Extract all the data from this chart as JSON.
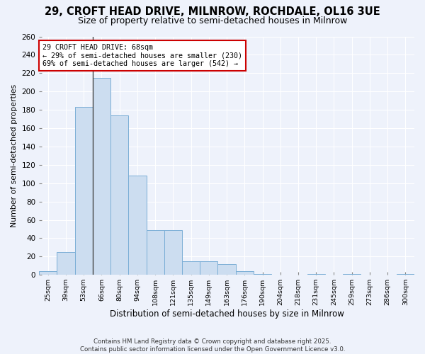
{
  "title1": "29, CROFT HEAD DRIVE, MILNROW, ROCHDALE, OL16 3UE",
  "title2": "Size of property relative to semi-detached houses in Milnrow",
  "xlabel": "Distribution of semi-detached houses by size in Milnrow",
  "ylabel": "Number of semi-detached properties",
  "categories": [
    "25sqm",
    "39sqm",
    "53sqm",
    "66sqm",
    "80sqm",
    "94sqm",
    "108sqm",
    "121sqm",
    "135sqm",
    "149sqm",
    "163sqm",
    "176sqm",
    "190sqm",
    "204sqm",
    "218sqm",
    "231sqm",
    "245sqm",
    "259sqm",
    "273sqm",
    "286sqm",
    "300sqm"
  ],
  "values": [
    4,
    25,
    183,
    215,
    174,
    108,
    49,
    49,
    15,
    15,
    12,
    4,
    1,
    0,
    0,
    1,
    0,
    1,
    0,
    0,
    1
  ],
  "bar_color": "#ccddf0",
  "bar_edge_color": "#7aaed6",
  "highlight_index": 3,
  "highlight_line_color": "#444444",
  "property_label": "29 CROFT HEAD DRIVE: 68sqm",
  "pct_smaller": 29,
  "count_smaller": 230,
  "pct_larger": 69,
  "count_larger": 542,
  "annotation_box_color": "#ffffff",
  "annotation_box_edge": "#cc0000",
  "ylim": [
    0,
    260
  ],
  "yticks": [
    0,
    20,
    40,
    60,
    80,
    100,
    120,
    140,
    160,
    180,
    200,
    220,
    240,
    260
  ],
  "background_color": "#eef2fb",
  "grid_color": "#ffffff",
  "footer": "Contains HM Land Registry data © Crown copyright and database right 2025.\nContains public sector information licensed under the Open Government Licence v3.0.",
  "title_fontsize": 10.5,
  "subtitle_fontsize": 9
}
